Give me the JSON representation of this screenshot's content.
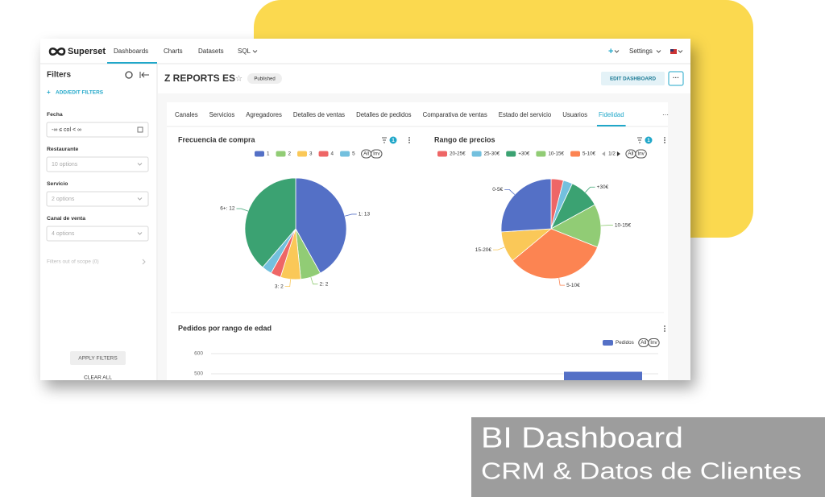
{
  "nav": {
    "brand": "Superset",
    "items": [
      "Dashboards",
      "Charts",
      "Datasets",
      "SQL"
    ],
    "plus": "+",
    "settings": "Settings"
  },
  "filters": {
    "title": "Filters",
    "add": "ADD/EDIT FILTERS",
    "fields": [
      {
        "label": "Fecha",
        "value": "-∞ ≤ col < ∞"
      },
      {
        "label": "Restaurante",
        "value": "10 options"
      },
      {
        "label": "Servicio",
        "value": "2 options"
      },
      {
        "label": "Canal de venta",
        "value": "4 options"
      }
    ],
    "out_of_scope": "Filters out of scope (0)",
    "apply": "APPLY FILTERS",
    "clear": "CLEAR ALL"
  },
  "header": {
    "title": "Z REPORTS ES",
    "status": "Published",
    "edit": "EDIT DASHBOARD",
    "more": "···"
  },
  "tabs": {
    "items": [
      "Canales",
      "Servicios",
      "Agregadores",
      "Detalles de ventas",
      "Detalles de pedidos",
      "Comparativa de ventas",
      "Estado del servicio",
      "Usuarios",
      "Fidelidad"
    ],
    "active": 8,
    "more": "···"
  },
  "charts": [
    {
      "type": "pie",
      "title": "Frecuencia de compra",
      "filter_count": 1,
      "legend_all": "All",
      "legend_inv": "Inv",
      "categories": [
        "1",
        "2",
        "3",
        "4",
        "5",
        "6+"
      ],
      "colors": [
        "#5470c6",
        "#91cc75",
        "#fac858",
        "#ee6666",
        "#73c0de",
        "#3ba272"
      ],
      "values": [
        13,
        2,
        2,
        1,
        1,
        12
      ],
      "value_labels": [
        "1: 13",
        "2: 2",
        "3: 2",
        null,
        null,
        "6+: 12"
      ]
    },
    {
      "type": "pie",
      "title": "Rango de precios",
      "filter_count": 1,
      "legend_all": "All",
      "legend_inv": "Inv",
      "legend_page": "1/2",
      "categories": [
        "20-25€",
        "25-30€",
        "+30€",
        "10-15€",
        "5-10€",
        "15-20€",
        "0-5€"
      ],
      "colors": [
        "#ee6666",
        "#73c0de",
        "#3ba272",
        "#91cc75",
        "#fc8452",
        "#fac858",
        "#5470c6"
      ],
      "values": [
        4,
        3,
        10,
        14,
        33,
        10,
        26
      ]
    },
    {
      "type": "bar",
      "title": "Pedidos por rango de edad",
      "legend_all": "All",
      "legend_inv": "Inv",
      "categories": [
        null
      ],
      "series": [
        {
          "name": "Pedidos",
          "color": "#5470c6",
          "values": [
            510
          ]
        }
      ],
      "ylim": [
        0,
        600
      ],
      "yticks": [
        500,
        600
      ],
      "grid": true
    }
  ],
  "overlay": {
    "title": "BI Dashboard",
    "subtitle": "CRM & Datos de Clientes"
  }
}
